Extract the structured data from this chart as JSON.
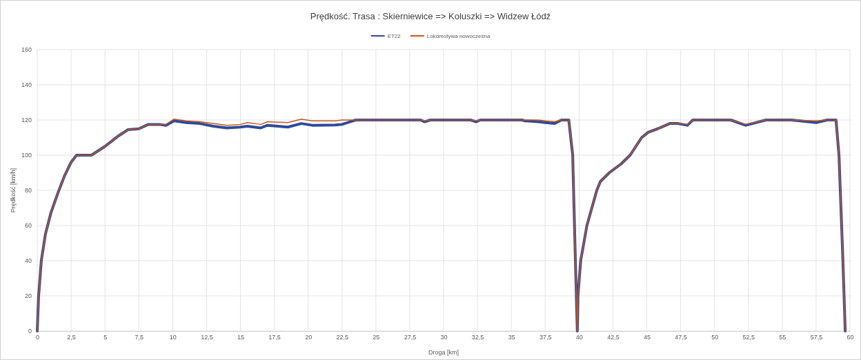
{
  "chart_data": {
    "type": "line",
    "title": "Prędkość. Trasa : Skierniewice => Koluszki => Widzew Łódź",
    "xlabel": "Droga [km]",
    "ylabel": "Prędkość [km/h]",
    "x": [
      0,
      0.1,
      0.3,
      0.6,
      1.0,
      1.5,
      2.0,
      2.5,
      2.9,
      4.0,
      5.0,
      5.5,
      6.0,
      6.7,
      7.5,
      8.2,
      9.0,
      9.5,
      10.1,
      11,
      12,
      13,
      14,
      15,
      15.5,
      16.5,
      17,
      18.5,
      19.5,
      20.3,
      22,
      22.5,
      23.5,
      28.3,
      28.6,
      29,
      32,
      32.4,
      32.7,
      35.8,
      36,
      37,
      37.5,
      38.2,
      38.7,
      39.24,
      39.53,
      39.73,
      39.87,
      39.92,
      40.12,
      40.58,
      41.31,
      41.57,
      42.23,
      43.1,
      43.77,
      44.62,
      45.1,
      45.8,
      46.7,
      47.3,
      48.0,
      48.4,
      51.2,
      52.3,
      53.8,
      55.7,
      57.5,
      58.3,
      58.97,
      59.19,
      59.48,
      59.65
    ],
    "series": [
      {
        "name": "ET22",
        "color": "#2e4a9a",
        "values": [
          0,
          20,
          40,
          55,
          67,
          78,
          88,
          96,
          100,
          100,
          105,
          108,
          111,
          114.5,
          115,
          117.5,
          117.5,
          117,
          119.5,
          118.5,
          118,
          116.5,
          115.5,
          116,
          116.5,
          115.5,
          117,
          116,
          118,
          117,
          117.2,
          117.5,
          120,
          120,
          119,
          120,
          120,
          119,
          120,
          120,
          119.5,
          119,
          118.5,
          118,
          120,
          120,
          100,
          40,
          0,
          20,
          40,
          60,
          80,
          85,
          90,
          95,
          100,
          110,
          113,
          115,
          118,
          118,
          117,
          120,
          120,
          117,
          120,
          120,
          118.5,
          120,
          120,
          100,
          40,
          0
        ]
      },
      {
        "name": "Lokomotywa nowoczesna",
        "color": "#c5561b",
        "values": [
          0,
          20,
          40,
          55,
          67,
          78,
          88,
          96,
          100,
          100,
          105,
          108,
          111,
          114.5,
          115,
          117.5,
          117.5,
          117.5,
          120.5,
          119.5,
          119,
          118,
          117,
          117.5,
          118.5,
          117.5,
          119,
          118.5,
          120.5,
          119.5,
          119.5,
          120,
          120,
          120,
          119.5,
          120,
          120,
          119.5,
          120,
          120,
          120,
          120,
          119.5,
          119,
          120,
          120,
          100,
          40,
          0,
          20,
          40,
          60,
          80,
          85,
          90,
          95,
          100,
          110,
          113,
          115,
          118,
          118,
          117.5,
          120,
          120,
          117.5,
          120,
          120,
          119.5,
          120,
          120,
          100,
          40,
          0
        ]
      }
    ],
    "xlim": [
      0,
      60
    ],
    "ylim": [
      0,
      160
    ],
    "xticks": [
      0,
      {
        "value": 2.5,
        "label": "2,5"
      },
      5,
      {
        "value": 7.5,
        "label": "7,5"
      },
      10,
      {
        "value": 12.5,
        "label": "12,5"
      },
      15,
      {
        "value": 17.5,
        "label": "17,5"
      },
      20,
      {
        "value": 22.5,
        "label": "22,5"
      },
      25,
      {
        "value": 27.5,
        "label": "27,5"
      },
      30,
      {
        "value": 32.5,
        "label": "32,5"
      },
      35,
      {
        "value": 37.5,
        "label": "37,5"
      },
      40,
      {
        "value": 42.5,
        "label": "42,5"
      },
      45,
      {
        "value": 47.5,
        "label": "47,5"
      },
      50,
      {
        "value": 52.5,
        "label": "52,5"
      },
      55,
      {
        "value": 57.5,
        "label": "57,5"
      },
      60
    ],
    "yticks": [
      0,
      20,
      40,
      60,
      80,
      100,
      120,
      140,
      160
    ],
    "grid": true,
    "legend": "top",
    "marker": "none",
    "line_style": "solid"
  }
}
